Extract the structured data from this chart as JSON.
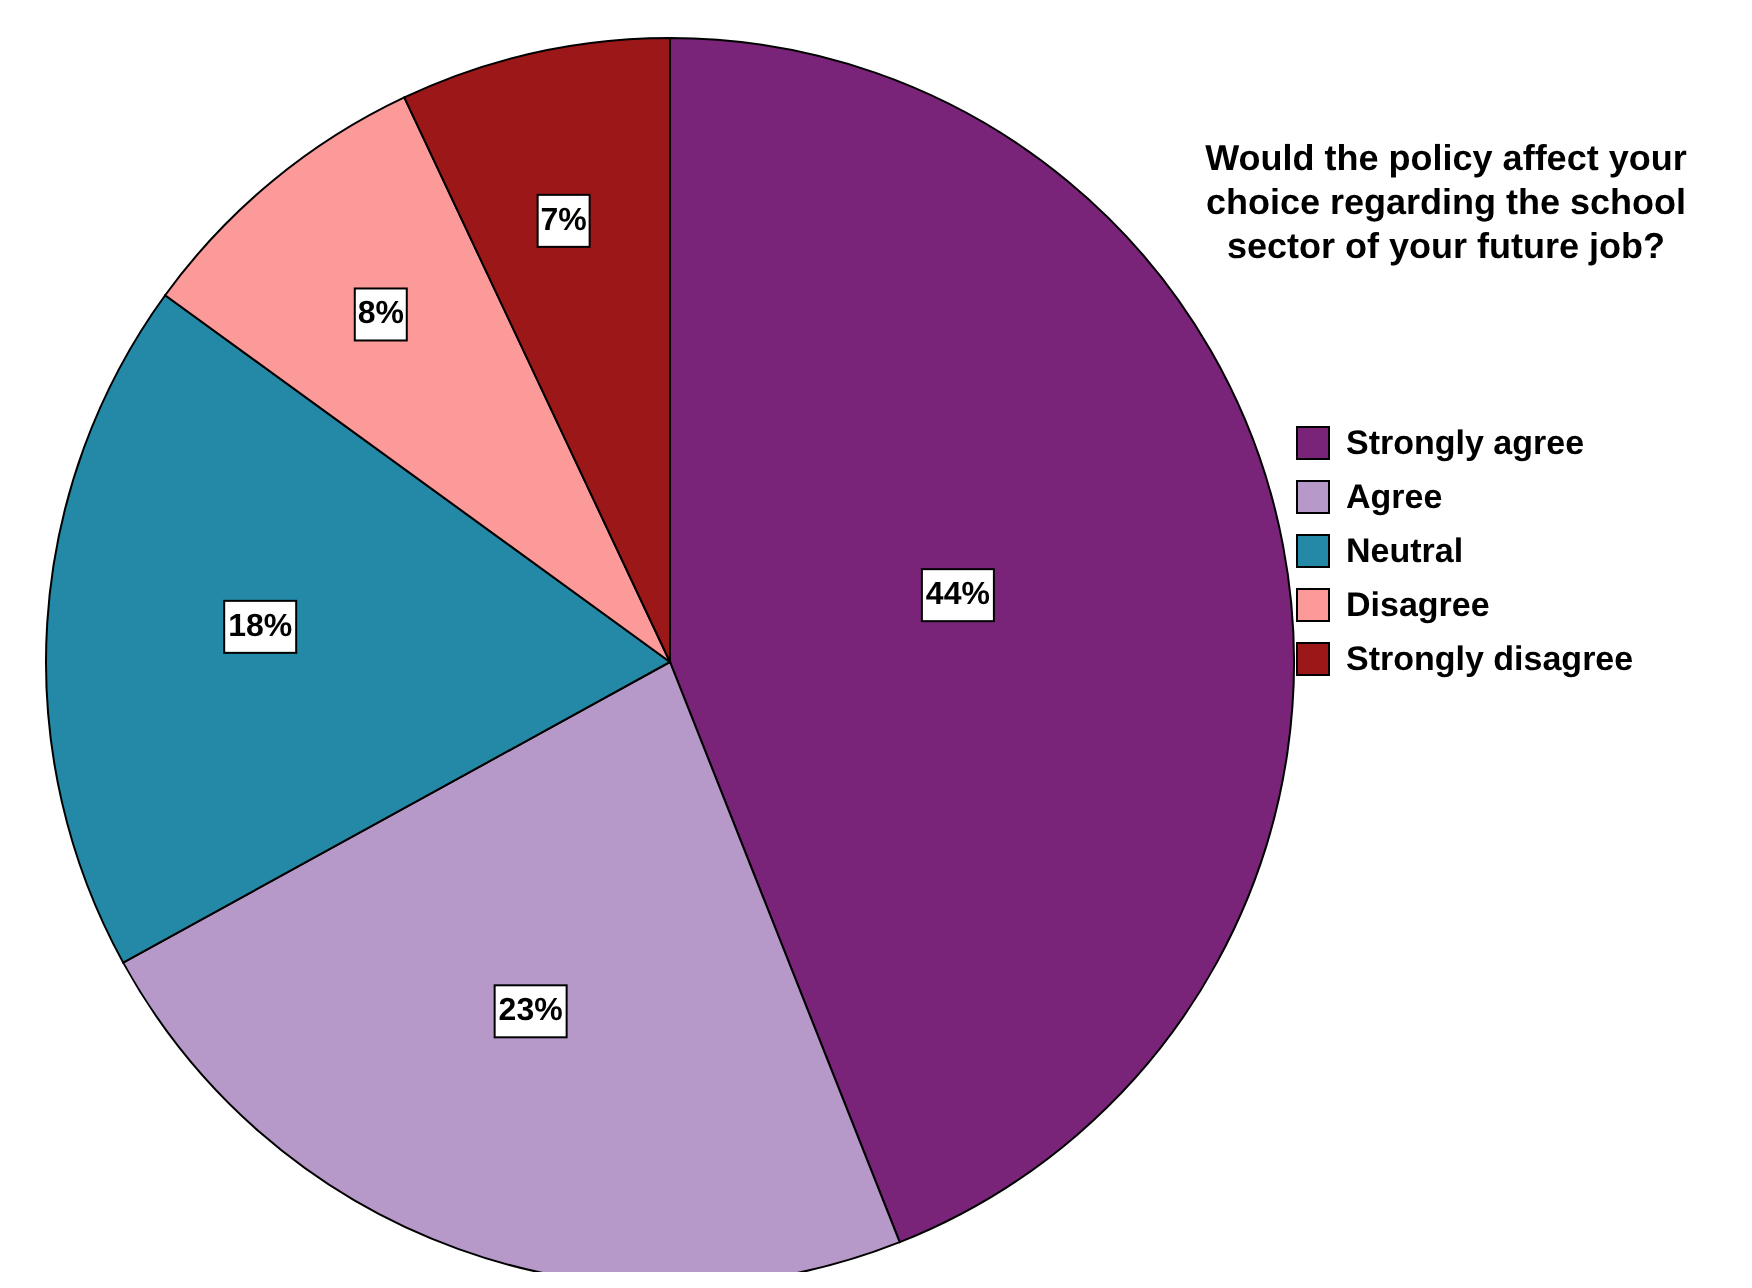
{
  "chart_data": {
    "type": "pie",
    "legend_title": "Would the policy affect your choice regarding the school sector of your future job?",
    "categories": [
      "Strongly agree",
      "Agree",
      "Neutral",
      "Disagree",
      "Strongly disagree"
    ],
    "values": [
      44,
      23,
      18,
      8,
      7
    ],
    "value_labels": [
      "44%",
      "23%",
      "18%",
      "8%",
      "7%"
    ],
    "colors": [
      "#7a2479",
      "#b699c8",
      "#2489a6",
      "#fc9a9a",
      "#9c1818"
    ],
    "legend": "right"
  }
}
